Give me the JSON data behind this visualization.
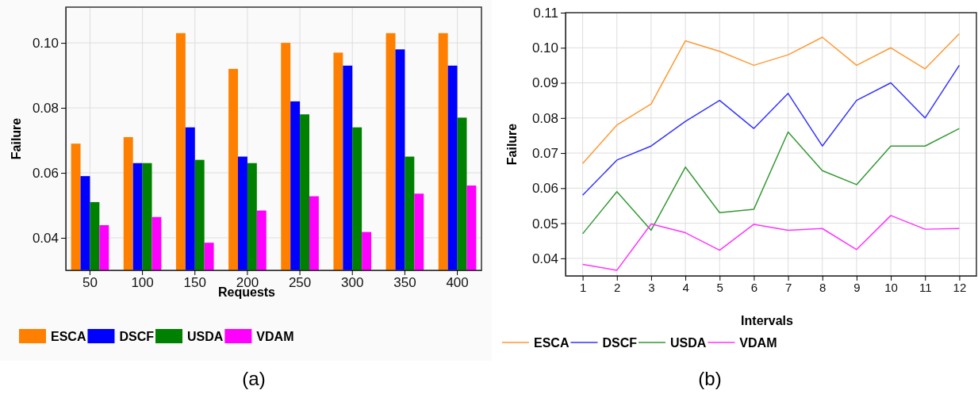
{
  "chart_data": [
    {
      "type": "bar",
      "xlabel": "Requests",
      "ylabel": "Failure",
      "categories": [
        "50",
        "100",
        "150",
        "200",
        "250",
        "300",
        "350",
        "400"
      ],
      "series": [
        {
          "name": "ESCA",
          "color": "#ff8000",
          "values": [
            0.069,
            0.071,
            0.103,
            0.092,
            0.1,
            0.097,
            0.103,
            0.103
          ]
        },
        {
          "name": "DSCF",
          "color": "#0000ff",
          "values": [
            0.059,
            0.063,
            0.074,
            0.065,
            0.082,
            0.093,
            0.098,
            0.093
          ]
        },
        {
          "name": "USDA",
          "color": "#008000",
          "values": [
            0.051,
            0.063,
            0.064,
            0.063,
            0.078,
            0.074,
            0.065,
            0.077
          ]
        },
        {
          "name": "VDAM",
          "color": "#ff00ff",
          "values": [
            0.0439,
            0.0464,
            0.0385,
            0.0484,
            0.0528,
            0.0418,
            0.0536,
            0.0561
          ]
        }
      ],
      "ylim": [
        0.03,
        0.111
      ],
      "yticks": [
        {
          "value": 0.04,
          "label": "0.04"
        },
        {
          "value": 0.06,
          "label": "0.06"
        },
        {
          "value": 0.08,
          "label": "0.08"
        },
        {
          "value": 0.1,
          "label": "0.10"
        }
      ],
      "grid": true,
      "legend": "bottom",
      "annotations": [
        "(a)"
      ]
    },
    {
      "type": "line",
      "xlabel": "Intervals",
      "ylabel": "Failure",
      "x": [
        1,
        2,
        3,
        4,
        5,
        6,
        7,
        8,
        9,
        10,
        11,
        12
      ],
      "series": [
        {
          "name": "ESCA",
          "color": "#ff9933",
          "values": [
            0.067,
            0.078,
            0.084,
            0.102,
            0.099,
            0.095,
            0.098,
            0.103,
            0.095,
            0.1,
            0.094,
            0.104
          ]
        },
        {
          "name": "DSCF",
          "color": "#3333ff",
          "values": [
            0.058,
            0.068,
            0.072,
            0.079,
            0.085,
            0.077,
            0.087,
            0.072,
            0.085,
            0.09,
            0.08,
            0.095
          ]
        },
        {
          "name": "USDA",
          "color": "#339933",
          "values": [
            0.047,
            0.059,
            0.048,
            0.066,
            0.053,
            0.054,
            0.076,
            0.065,
            0.061,
            0.072,
            0.072,
            0.077
          ]
        },
        {
          "name": "VDAM",
          "color": "#ff33ff",
          "values": [
            0.0383,
            0.0366,
            0.0498,
            0.0473,
            0.0423,
            0.0497,
            0.048,
            0.0485,
            0.0425,
            0.0522,
            0.0483,
            0.0485
          ]
        }
      ],
      "xlim": [
        0.5,
        12.5
      ],
      "xticks": [
        1,
        2,
        3,
        4,
        5,
        6,
        7,
        8,
        9,
        10,
        11,
        12
      ],
      "ylim": [
        0.035,
        0.11
      ],
      "yticks": [
        {
          "value": 0.04,
          "label": "0.04"
        },
        {
          "value": 0.05,
          "label": "0.05"
        },
        {
          "value": 0.06,
          "label": "0.06"
        },
        {
          "value": 0.07,
          "label": "0.07"
        },
        {
          "value": 0.08,
          "label": "0.08"
        },
        {
          "value": 0.09,
          "label": "0.09"
        },
        {
          "value": 0.1,
          "label": "0.10"
        },
        {
          "value": 0.11,
          "label": "0.11"
        }
      ],
      "grid": true,
      "legend": "bottom",
      "line_style": "solid",
      "marker": "none",
      "annotations": [
        "(b)"
      ]
    }
  ]
}
